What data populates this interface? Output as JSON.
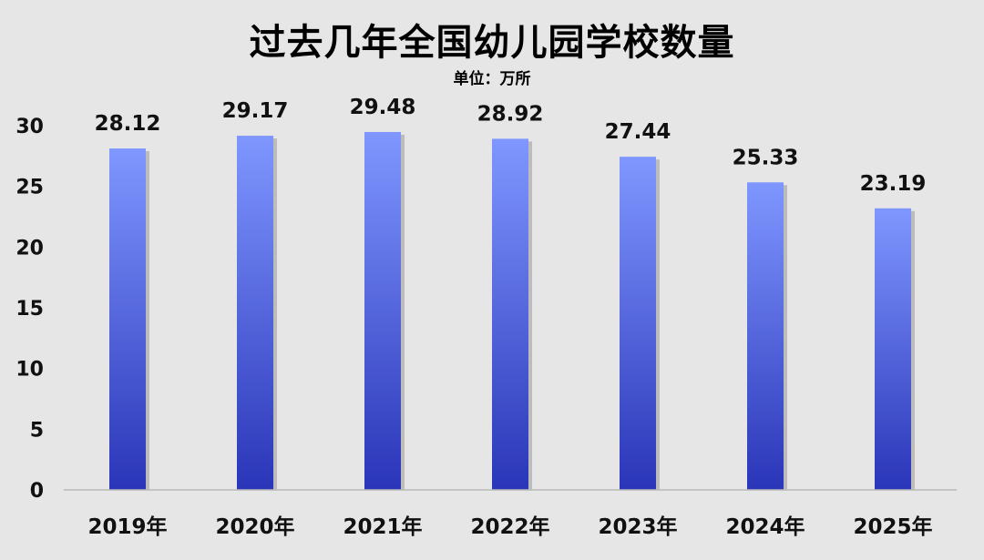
{
  "chart_data": {
    "type": "bar",
    "title": "过去几年全国幼儿园学校数量",
    "subtitle": "单位：万所",
    "categories": [
      "2019年",
      "2020年",
      "2021年",
      "2022年",
      "2023年",
      "2024年",
      "2025年"
    ],
    "values": [
      28.12,
      29.17,
      29.48,
      28.92,
      27.44,
      25.33,
      23.19
    ],
    "value_labels": [
      "28.12",
      "29.17",
      "29.48",
      "28.92",
      "27.44",
      "25.33",
      "23.19"
    ],
    "ylim": [
      0,
      30
    ],
    "yticks": [
      0,
      5,
      10,
      15,
      20,
      25,
      30
    ],
    "grid": false,
    "legend": "none",
    "bar_color_top": "#7f97ff",
    "bar_color_bottom": "#2a35b8"
  }
}
